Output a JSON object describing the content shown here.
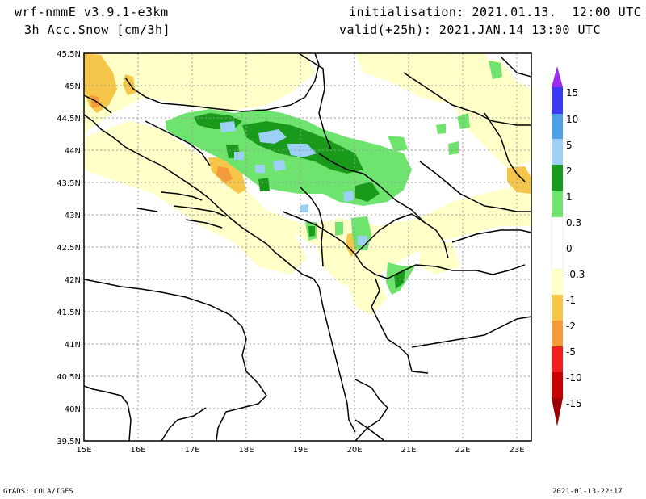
{
  "header": {
    "model": "wrf-nmmE_v3.9.1-e3km",
    "variable": "3h Acc.Snow [cm/3h]",
    "init": "initialisation: 2021.01.13.  12:00 UTC",
    "valid": "valid(+25h): 2021.JAN.14 13:00 UTC"
  },
  "axes": {
    "lat_labels": [
      "45.5N",
      "45N",
      "44.5N",
      "44N",
      "43.5N",
      "43N",
      "42.5N",
      "42N",
      "41.5N",
      "41N",
      "40.5N",
      "40N",
      "39.5N"
    ],
    "lon_labels": [
      "15E",
      "16E",
      "17E",
      "18E",
      "19E",
      "20E",
      "21E",
      "22E",
      "23E"
    ]
  },
  "colorbar": {
    "labels": [
      "15",
      "10",
      "5",
      "2",
      "1",
      "0.3",
      "0",
      "-0.3",
      "-1",
      "-2",
      "-5",
      "-10",
      "-15"
    ],
    "colors": {
      "c15": "#9b2cf0",
      "c10_15": "#3a3af5",
      "c5_10": "#4f9fe6",
      "c2_5": "#9cd0f5",
      "c1_2": "#1a9a1a",
      "c03_1": "#6ee36e",
      "c0_03": "#ffffff",
      "cm03_0": "#ffffc8",
      "cm1_m03": "#f5c64a",
      "cm2_m1": "#f59a3c",
      "cm5_m2": "#f02020",
      "cm10_m5": "#c80000",
      "cm15_m10": "#9a0000"
    }
  },
  "footer": {
    "left": "GrADS: COLA/IGES",
    "right": "2021-01-13-22:17"
  }
}
